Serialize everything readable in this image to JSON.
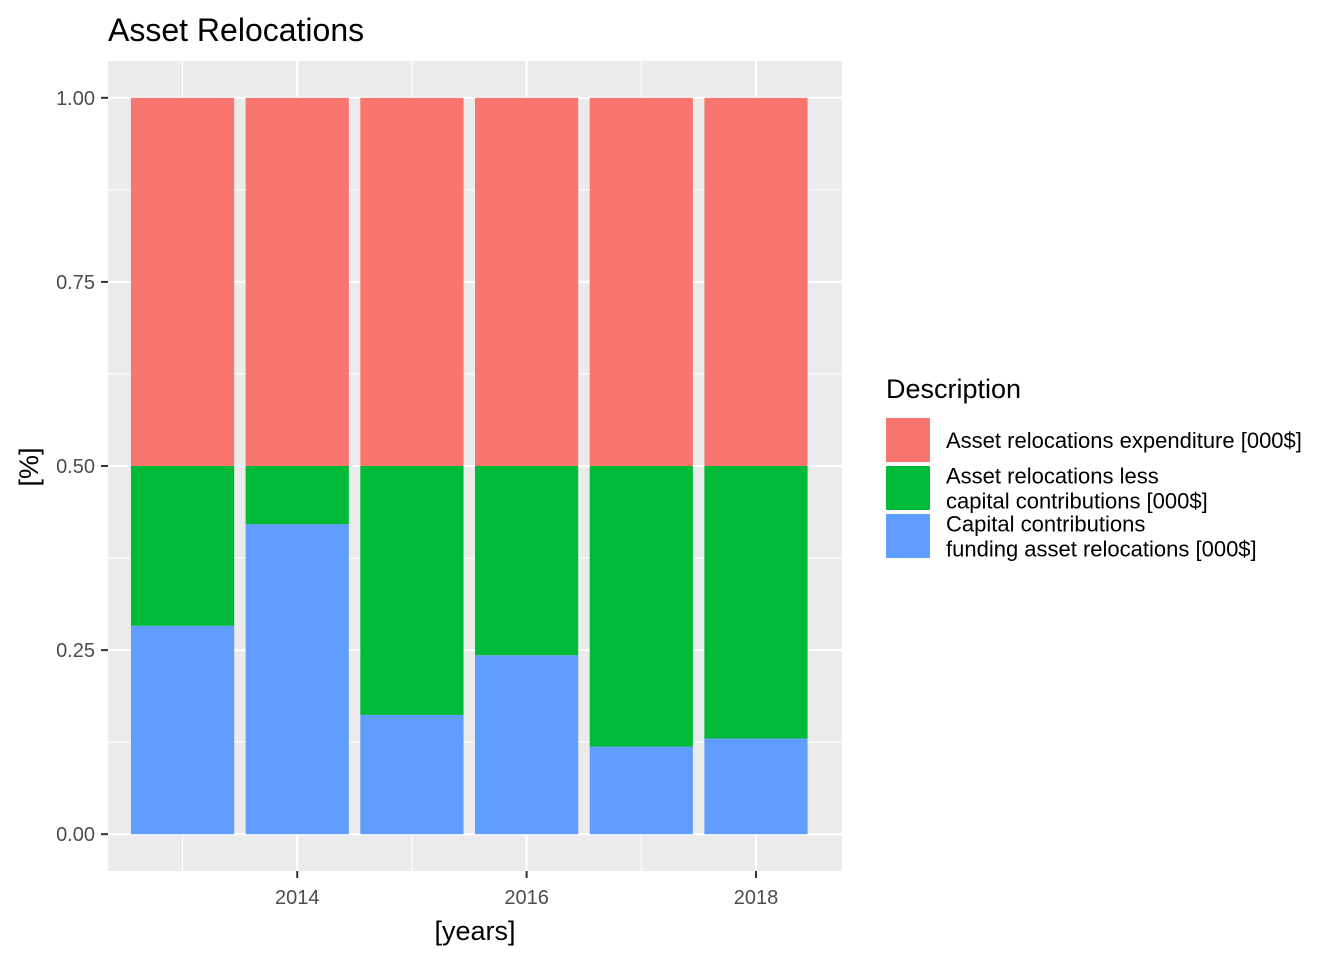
{
  "chart_data": {
    "type": "bar",
    "stacked": true,
    "title": "Asset Relocations",
    "xlabel": "[years]",
    "ylabel": "[%]",
    "x": [
      2013,
      2014,
      2015,
      2016,
      2017,
      2018
    ],
    "xlim": [
      2012.35,
      2018.75
    ],
    "ylim": [
      -0.05,
      1.05
    ],
    "x_ticks": [
      2014,
      2016,
      2018
    ],
    "x_tick_labels": [
      "2014",
      "2016",
      "2018"
    ],
    "y_ticks": [
      0,
      0.25,
      0.5,
      0.75,
      1.0
    ],
    "y_tick_labels": [
      "0.00",
      "0.25",
      "0.50",
      "0.75",
      "1.00"
    ],
    "grid": true,
    "legend_title": "Description",
    "legend_position": "right",
    "series": [
      {
        "name": "Capital contributions\nfunding asset relocations [000$]",
        "name_lines": [
          "Capital contributions",
          "funding asset relocations [000$]"
        ],
        "color": "#619CFF",
        "values": [
          0.283,
          0.421,
          0.162,
          0.243,
          0.119,
          0.13
        ]
      },
      {
        "name": "Asset relocations less\ncapital contributions [000$]",
        "name_lines": [
          "Asset relocations less",
          "capital contributions [000$]"
        ],
        "color": "#00BA38",
        "values": [
          0.217,
          0.079,
          0.338,
          0.257,
          0.381,
          0.37
        ]
      },
      {
        "name": "Asset relocations expenditure [000$]",
        "name_lines": [
          "Asset relocations expenditure [000$]"
        ],
        "color": "#F8766D",
        "values": [
          0.5,
          0.5,
          0.5,
          0.5,
          0.5,
          0.5
        ]
      }
    ],
    "legend_order": [
      2,
      1,
      0
    ]
  }
}
